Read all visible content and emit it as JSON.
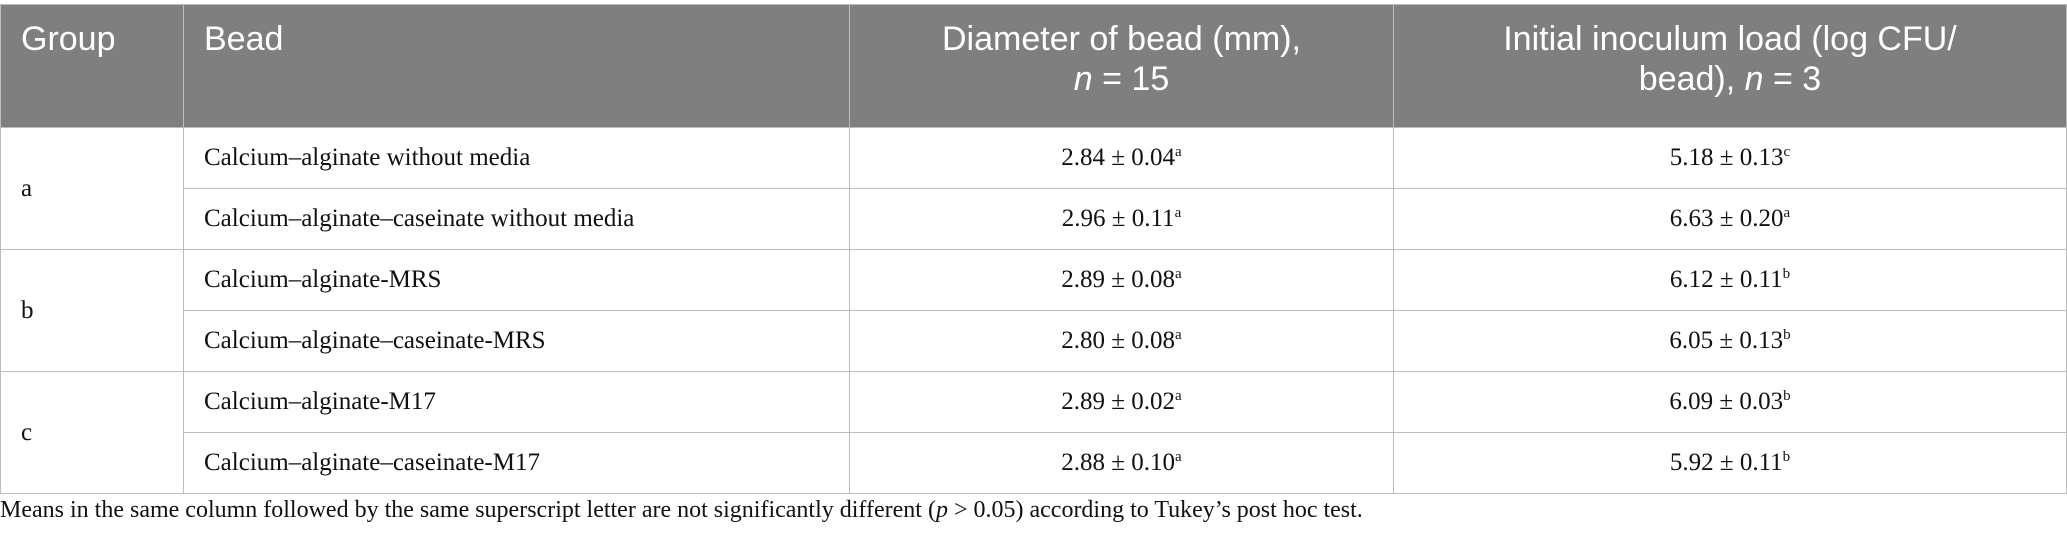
{
  "table": {
    "header": {
      "group": "Group",
      "bead": "Bead",
      "diameter": {
        "line1": "Diameter of bead (mm),",
        "n": "n",
        "rest": "= 15"
      },
      "inoculum": {
        "line1": "Initial inoculum load (log CFU/",
        "line2": "bead),",
        "n": "n",
        "rest": "= 3"
      }
    },
    "groups": [
      {
        "label": "a",
        "rows": [
          {
            "bead": "Calcium–alginate without media",
            "diameter": "2.84 ± 0.04",
            "diameter_sup": "a",
            "inoculum": "5.18 ± 0.13",
            "inoculum_sup": "c"
          },
          {
            "bead": "Calcium–alginate–caseinate without media",
            "diameter": "2.96 ± 0.11",
            "diameter_sup": "a",
            "inoculum": "6.63 ± 0.20",
            "inoculum_sup": "a"
          }
        ]
      },
      {
        "label": "b",
        "rows": [
          {
            "bead": "Calcium–alginate-MRS",
            "diameter": "2.89 ± 0.08",
            "diameter_sup": "a",
            "inoculum": "6.12 ± 0.11",
            "inoculum_sup": "b"
          },
          {
            "bead": "Calcium–alginate–caseinate-MRS",
            "diameter": "2.80 ± 0.08",
            "diameter_sup": "a",
            "inoculum": "6.05 ± 0.13",
            "inoculum_sup": "b"
          }
        ]
      },
      {
        "label": "c",
        "rows": [
          {
            "bead": "Calcium–alginate-M17",
            "diameter": "2.89 ± 0.02",
            "diameter_sup": "a",
            "inoculum": "6.09 ± 0.03",
            "inoculum_sup": "b"
          },
          {
            "bead": "Calcium–alginate–caseinate-M17",
            "diameter": "2.88 ± 0.10",
            "diameter_sup": "a",
            "inoculum": "5.92 ± 0.11",
            "inoculum_sup": "b"
          }
        ]
      }
    ]
  },
  "footnote": {
    "before": "Means in the same column followed by the same superscript letter are not significantly different (",
    "p": "p",
    "after": "> 0.05) according to Tukey’s post hoc test."
  }
}
